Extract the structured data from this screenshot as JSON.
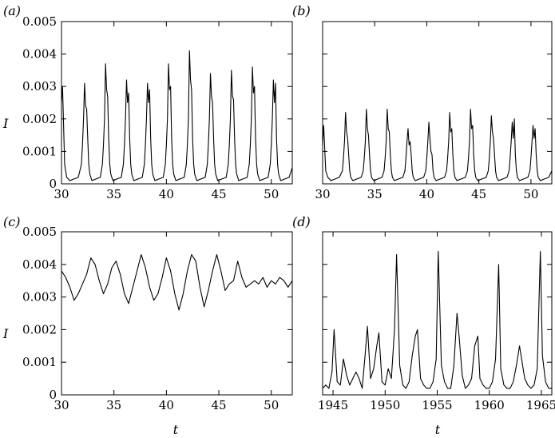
{
  "figure": {
    "shared_ylabel": "I",
    "shared_xlabel": "t"
  },
  "chart_data": [
    {
      "panel": "(a)",
      "type": "line",
      "title": "",
      "xlabel": "",
      "ylabel": "I",
      "xlim": [
        30,
        52
      ],
      "ylim": [
        0,
        0.005
      ],
      "xticks": [
        30,
        35,
        40,
        45,
        50
      ],
      "yticks": [
        0,
        0.001,
        0.002,
        0.003,
        0.004,
        0.005
      ],
      "xtick_labels": [
        "30",
        "35",
        "40",
        "45",
        "50"
      ],
      "ytick_labels": [
        "0",
        "0.001",
        "0.002",
        "0.003",
        "0.004",
        "0.005"
      ],
      "grid": false,
      "series": [
        {
          "x": [
            30.0,
            30.1,
            30.2,
            30.3,
            30.5,
            30.8,
            31.2,
            31.6,
            31.9,
            32.0,
            32.1,
            32.2,
            32.3,
            32.4,
            32.5,
            32.6,
            32.7,
            32.9,
            33.3,
            33.7,
            33.9,
            34.0,
            34.1,
            34.2,
            34.3,
            34.4,
            34.5,
            34.6,
            34.7,
            34.9,
            35.3,
            35.7,
            35.9,
            36.0,
            36.1,
            36.2,
            36.3,
            36.4,
            36.5,
            36.6,
            36.7,
            36.9,
            37.3,
            37.7,
            37.9,
            38.0,
            38.1,
            38.2,
            38.3,
            38.4,
            38.5,
            38.6,
            38.7,
            38.9,
            39.3,
            39.7,
            39.9,
            40.0,
            40.1,
            40.2,
            40.3,
            40.4,
            40.5,
            40.6,
            40.7,
            40.9,
            41.3,
            41.7,
            41.9,
            42.0,
            42.1,
            42.2,
            42.3,
            42.4,
            42.5,
            42.6,
            42.7,
            42.9,
            43.3,
            43.7,
            43.9,
            44.0,
            44.1,
            44.2,
            44.3,
            44.4,
            44.5,
            44.6,
            44.7,
            44.9,
            45.3,
            45.7,
            45.9,
            46.0,
            46.1,
            46.2,
            46.3,
            46.4,
            46.5,
            46.6,
            46.7,
            46.9,
            47.3,
            47.7,
            47.9,
            48.0,
            48.1,
            48.2,
            48.3,
            48.4,
            48.5,
            48.6,
            48.7,
            48.9,
            49.3,
            49.7,
            49.9,
            50.0,
            50.1,
            50.2,
            50.3,
            50.4,
            50.5,
            50.6,
            50.7,
            50.9,
            51.3,
            51.7,
            52.0
          ],
          "y": [
            0.0025,
            0.003,
            0.0018,
            0.0006,
            0.0002,
            0.0001,
            0.00015,
            0.0002,
            0.0006,
            0.0012,
            0.002,
            0.0031,
            0.0024,
            0.0023,
            0.0014,
            0.0006,
            0.0003,
            0.0001,
            0.00015,
            0.0002,
            0.0006,
            0.0012,
            0.002,
            0.0037,
            0.0029,
            0.0027,
            0.0014,
            0.0006,
            0.0003,
            0.0001,
            0.00015,
            0.0002,
            0.0006,
            0.0012,
            0.002,
            0.0032,
            0.0025,
            0.0028,
            0.0014,
            0.0006,
            0.0003,
            0.0001,
            0.00015,
            0.0002,
            0.0006,
            0.0012,
            0.002,
            0.0031,
            0.0025,
            0.0029,
            0.0014,
            0.0006,
            0.0003,
            0.0001,
            0.00015,
            0.0002,
            0.0006,
            0.0012,
            0.002,
            0.0037,
            0.0029,
            0.003,
            0.0014,
            0.0006,
            0.0003,
            0.0001,
            0.00015,
            0.0002,
            0.0006,
            0.0012,
            0.002,
            0.0041,
            0.0032,
            0.0029,
            0.0014,
            0.0006,
            0.0003,
            0.0001,
            0.00015,
            0.0002,
            0.0006,
            0.0012,
            0.002,
            0.0034,
            0.0027,
            0.0025,
            0.0014,
            0.0006,
            0.0003,
            0.0001,
            0.00015,
            0.0002,
            0.0006,
            0.0012,
            0.002,
            0.0035,
            0.0027,
            0.0026,
            0.0014,
            0.0006,
            0.0003,
            0.0001,
            0.00015,
            0.0002,
            0.0006,
            0.0012,
            0.002,
            0.0036,
            0.0028,
            0.003,
            0.0014,
            0.0006,
            0.0003,
            0.0001,
            0.00015,
            0.0002,
            0.0006,
            0.0012,
            0.002,
            0.0032,
            0.0025,
            0.0031,
            0.0014,
            0.0006,
            0.0003,
            0.0001,
            0.00015,
            0.0002,
            0.0005
          ]
        }
      ]
    },
    {
      "panel": "(b)",
      "type": "line",
      "title": "",
      "xlabel": "",
      "ylabel": "",
      "xlim": [
        30,
        52
      ],
      "ylim": [
        0,
        0.005
      ],
      "xticks": [
        30,
        35,
        40,
        45,
        50
      ],
      "yticks": [
        0,
        0.001,
        0.002,
        0.003,
        0.004,
        0.005
      ],
      "xtick_labels": [
        "30",
        "35",
        "40",
        "45",
        "50"
      ],
      "ytick_labels": [],
      "grid": false,
      "series": [
        {
          "x": [
            30.0,
            30.1,
            30.2,
            30.3,
            30.5,
            30.8,
            31.2,
            31.6,
            31.9,
            32.0,
            32.1,
            32.2,
            32.3,
            32.4,
            32.5,
            32.6,
            32.7,
            32.9,
            33.3,
            33.7,
            33.9,
            34.0,
            34.1,
            34.2,
            34.3,
            34.4,
            34.5,
            34.6,
            34.7,
            34.9,
            35.3,
            35.7,
            35.9,
            36.0,
            36.1,
            36.2,
            36.3,
            36.4,
            36.5,
            36.6,
            36.7,
            36.9,
            37.3,
            37.7,
            37.9,
            38.0,
            38.1,
            38.2,
            38.3,
            38.4,
            38.5,
            38.6,
            38.7,
            38.9,
            39.3,
            39.7,
            39.9,
            40.0,
            40.1,
            40.2,
            40.3,
            40.4,
            40.5,
            40.6,
            40.7,
            40.9,
            41.3,
            41.7,
            41.9,
            42.0,
            42.1,
            42.2,
            42.3,
            42.4,
            42.5,
            42.6,
            42.7,
            42.9,
            43.3,
            43.7,
            43.9,
            44.0,
            44.1,
            44.2,
            44.3,
            44.4,
            44.5,
            44.6,
            44.7,
            44.9,
            45.3,
            45.7,
            45.9,
            46.0,
            46.1,
            46.2,
            46.3,
            46.4,
            46.5,
            46.6,
            46.7,
            46.9,
            47.3,
            47.7,
            47.9,
            48.0,
            48.1,
            48.2,
            48.3,
            48.4,
            48.5,
            48.6,
            48.7,
            48.9,
            49.3,
            49.7,
            49.9,
            50.0,
            50.1,
            50.2,
            50.3,
            50.4,
            50.5,
            50.6,
            50.7,
            50.9,
            51.3,
            51.7,
            52.0
          ],
          "y": [
            0.0012,
            0.0018,
            0.0011,
            0.0004,
            0.0002,
            0.0001,
            0.00015,
            0.0002,
            0.0004,
            0.0008,
            0.0013,
            0.0022,
            0.0016,
            0.0014,
            0.0009,
            0.0004,
            0.0002,
            0.0001,
            0.00015,
            0.0002,
            0.0004,
            0.0008,
            0.0013,
            0.0023,
            0.0017,
            0.0015,
            0.0009,
            0.0004,
            0.0002,
            0.0001,
            0.00015,
            0.0002,
            0.0004,
            0.0008,
            0.0013,
            0.0023,
            0.0017,
            0.0016,
            0.0009,
            0.0004,
            0.0002,
            0.0001,
            0.00015,
            0.0002,
            0.0004,
            0.0008,
            0.0013,
            0.0017,
            0.0012,
            0.0013,
            0.0009,
            0.0004,
            0.0002,
            0.0001,
            0.00015,
            0.0002,
            0.0004,
            0.0008,
            0.0013,
            0.0019,
            0.0014,
            0.001,
            0.0009,
            0.0004,
            0.0002,
            0.0001,
            0.00015,
            0.0002,
            0.0004,
            0.0008,
            0.0013,
            0.0022,
            0.0016,
            0.0017,
            0.0009,
            0.0004,
            0.0002,
            0.0001,
            0.00015,
            0.0002,
            0.0004,
            0.0008,
            0.0013,
            0.0023,
            0.0017,
            0.0018,
            0.0009,
            0.0004,
            0.0002,
            0.0001,
            0.00015,
            0.0002,
            0.0004,
            0.0008,
            0.0013,
            0.0021,
            0.0016,
            0.0014,
            0.0009,
            0.0004,
            0.0002,
            0.0001,
            0.00015,
            0.0002,
            0.0004,
            0.0008,
            0.0013,
            0.0019,
            0.0014,
            0.002,
            0.0009,
            0.0004,
            0.0002,
            0.0001,
            0.00015,
            0.0002,
            0.0004,
            0.0008,
            0.0013,
            0.0018,
            0.0014,
            0.0017,
            0.0009,
            0.0004,
            0.0002,
            0.0001,
            0.00015,
            0.0002,
            0.0004
          ]
        }
      ]
    },
    {
      "panel": "(c)",
      "type": "line",
      "title": "",
      "xlabel": "t",
      "ylabel": "I",
      "xlim": [
        30,
        52
      ],
      "ylim": [
        0,
        0.005
      ],
      "xticks": [
        30,
        35,
        40,
        45,
        50
      ],
      "yticks": [
        0,
        0.001,
        0.002,
        0.003,
        0.004,
        0.005
      ],
      "xtick_labels": [
        "30",
        "35",
        "40",
        "45",
        "50"
      ],
      "ytick_labels": [
        "0",
        "0.001",
        "0.002",
        "0.003",
        "0.004",
        "0.005"
      ],
      "grid": false,
      "series": [
        {
          "x": [
            30.0,
            30.4,
            30.8,
            31.2,
            31.6,
            32.0,
            32.4,
            32.8,
            33.2,
            33.6,
            34.0,
            34.4,
            34.8,
            35.2,
            35.6,
            36.0,
            36.4,
            36.8,
            37.2,
            37.6,
            38.0,
            38.4,
            38.8,
            39.2,
            39.6,
            40.0,
            40.4,
            40.8,
            41.2,
            41.6,
            42.0,
            42.4,
            42.8,
            43.2,
            43.6,
            44.0,
            44.4,
            44.8,
            45.2,
            45.6,
            46.0,
            46.4,
            46.8,
            47.2,
            47.6,
            48.0,
            48.4,
            48.8,
            49.2,
            49.6,
            50.0,
            50.4,
            50.8,
            51.2,
            51.6,
            52.0
          ],
          "y": [
            0.0038,
            0.0036,
            0.0033,
            0.0029,
            0.0031,
            0.0034,
            0.0037,
            0.0042,
            0.004,
            0.0035,
            0.0031,
            0.0034,
            0.0039,
            0.0041,
            0.0037,
            0.0031,
            0.0028,
            0.0033,
            0.0038,
            0.0043,
            0.0039,
            0.0033,
            0.0029,
            0.0031,
            0.0036,
            0.0042,
            0.0038,
            0.0031,
            0.0026,
            0.0031,
            0.0038,
            0.0043,
            0.0041,
            0.0033,
            0.0027,
            0.0032,
            0.0038,
            0.0043,
            0.0038,
            0.0032,
            0.0034,
            0.0035,
            0.0041,
            0.0036,
            0.0033,
            0.0034,
            0.0035,
            0.0034,
            0.0036,
            0.0033,
            0.0035,
            0.0034,
            0.0036,
            0.0035,
            0.0033,
            0.0035
          ]
        }
      ]
    },
    {
      "panel": "(d)",
      "type": "line",
      "title": "",
      "xlabel": "t",
      "ylabel": "",
      "xlim": [
        1944,
        1966
      ],
      "ylim": [
        0,
        0.005
      ],
      "xticks": [
        1945,
        1950,
        1955,
        1960,
        1965
      ],
      "yticks": [
        0,
        0.001,
        0.002,
        0.003,
        0.004,
        0.005
      ],
      "xtick_labels": [
        "1945",
        "1950",
        "1955",
        "1960",
        "1965"
      ],
      "ytick_labels": [],
      "grid": false,
      "series": [
        {
          "x": [
            1944.0,
            1944.3,
            1944.6,
            1944.9,
            1945.1,
            1945.4,
            1945.7,
            1946.0,
            1946.3,
            1946.6,
            1946.9,
            1947.2,
            1947.5,
            1947.8,
            1948.1,
            1948.3,
            1948.6,
            1948.9,
            1949.2,
            1949.4,
            1949.7,
            1950.0,
            1950.3,
            1950.6,
            1950.9,
            1951.1,
            1951.4,
            1951.7,
            1952.0,
            1952.3,
            1952.6,
            1952.9,
            1953.1,
            1953.4,
            1953.7,
            1954.0,
            1954.3,
            1954.6,
            1954.9,
            1955.1,
            1955.4,
            1955.7,
            1956.0,
            1956.3,
            1956.6,
            1956.9,
            1957.1,
            1957.4,
            1957.7,
            1958.0,
            1958.3,
            1958.6,
            1958.9,
            1959.1,
            1959.4,
            1959.7,
            1960.0,
            1960.3,
            1960.6,
            1960.9,
            1961.1,
            1961.4,
            1961.7,
            1962.0,
            1962.3,
            1962.6,
            1962.9,
            1963.1,
            1963.4,
            1963.7,
            1964.0,
            1964.3,
            1964.6,
            1964.9,
            1965.1,
            1965.4,
            1965.7,
            1966.0
          ],
          "y": [
            0.0002,
            0.0003,
            0.0002,
            0.0007,
            0.002,
            0.0004,
            0.0003,
            0.0011,
            0.0006,
            0.0003,
            0.0005,
            0.0007,
            0.0005,
            0.0002,
            0.0013,
            0.0021,
            0.0005,
            0.0008,
            0.0015,
            0.0019,
            0.0004,
            0.0003,
            0.0008,
            0.0005,
            0.002,
            0.0043,
            0.0009,
            0.0003,
            0.0002,
            0.0004,
            0.0012,
            0.0018,
            0.002,
            0.0005,
            0.0003,
            0.0002,
            0.0002,
            0.0004,
            0.0011,
            0.0044,
            0.0009,
            0.0004,
            0.0002,
            0.0002,
            0.0009,
            0.0025,
            0.0018,
            0.0006,
            0.0002,
            0.0003,
            0.0005,
            0.0015,
            0.0018,
            0.0005,
            0.0003,
            0.0002,
            0.0002,
            0.0004,
            0.0011,
            0.004,
            0.0008,
            0.0003,
            0.0002,
            0.0002,
            0.0004,
            0.0009,
            0.0015,
            0.0011,
            0.0005,
            0.0003,
            0.0002,
            0.0003,
            0.0008,
            0.0044,
            0.0012,
            0.0004,
            0.0002,
            0.0002
          ]
        }
      ]
    }
  ]
}
